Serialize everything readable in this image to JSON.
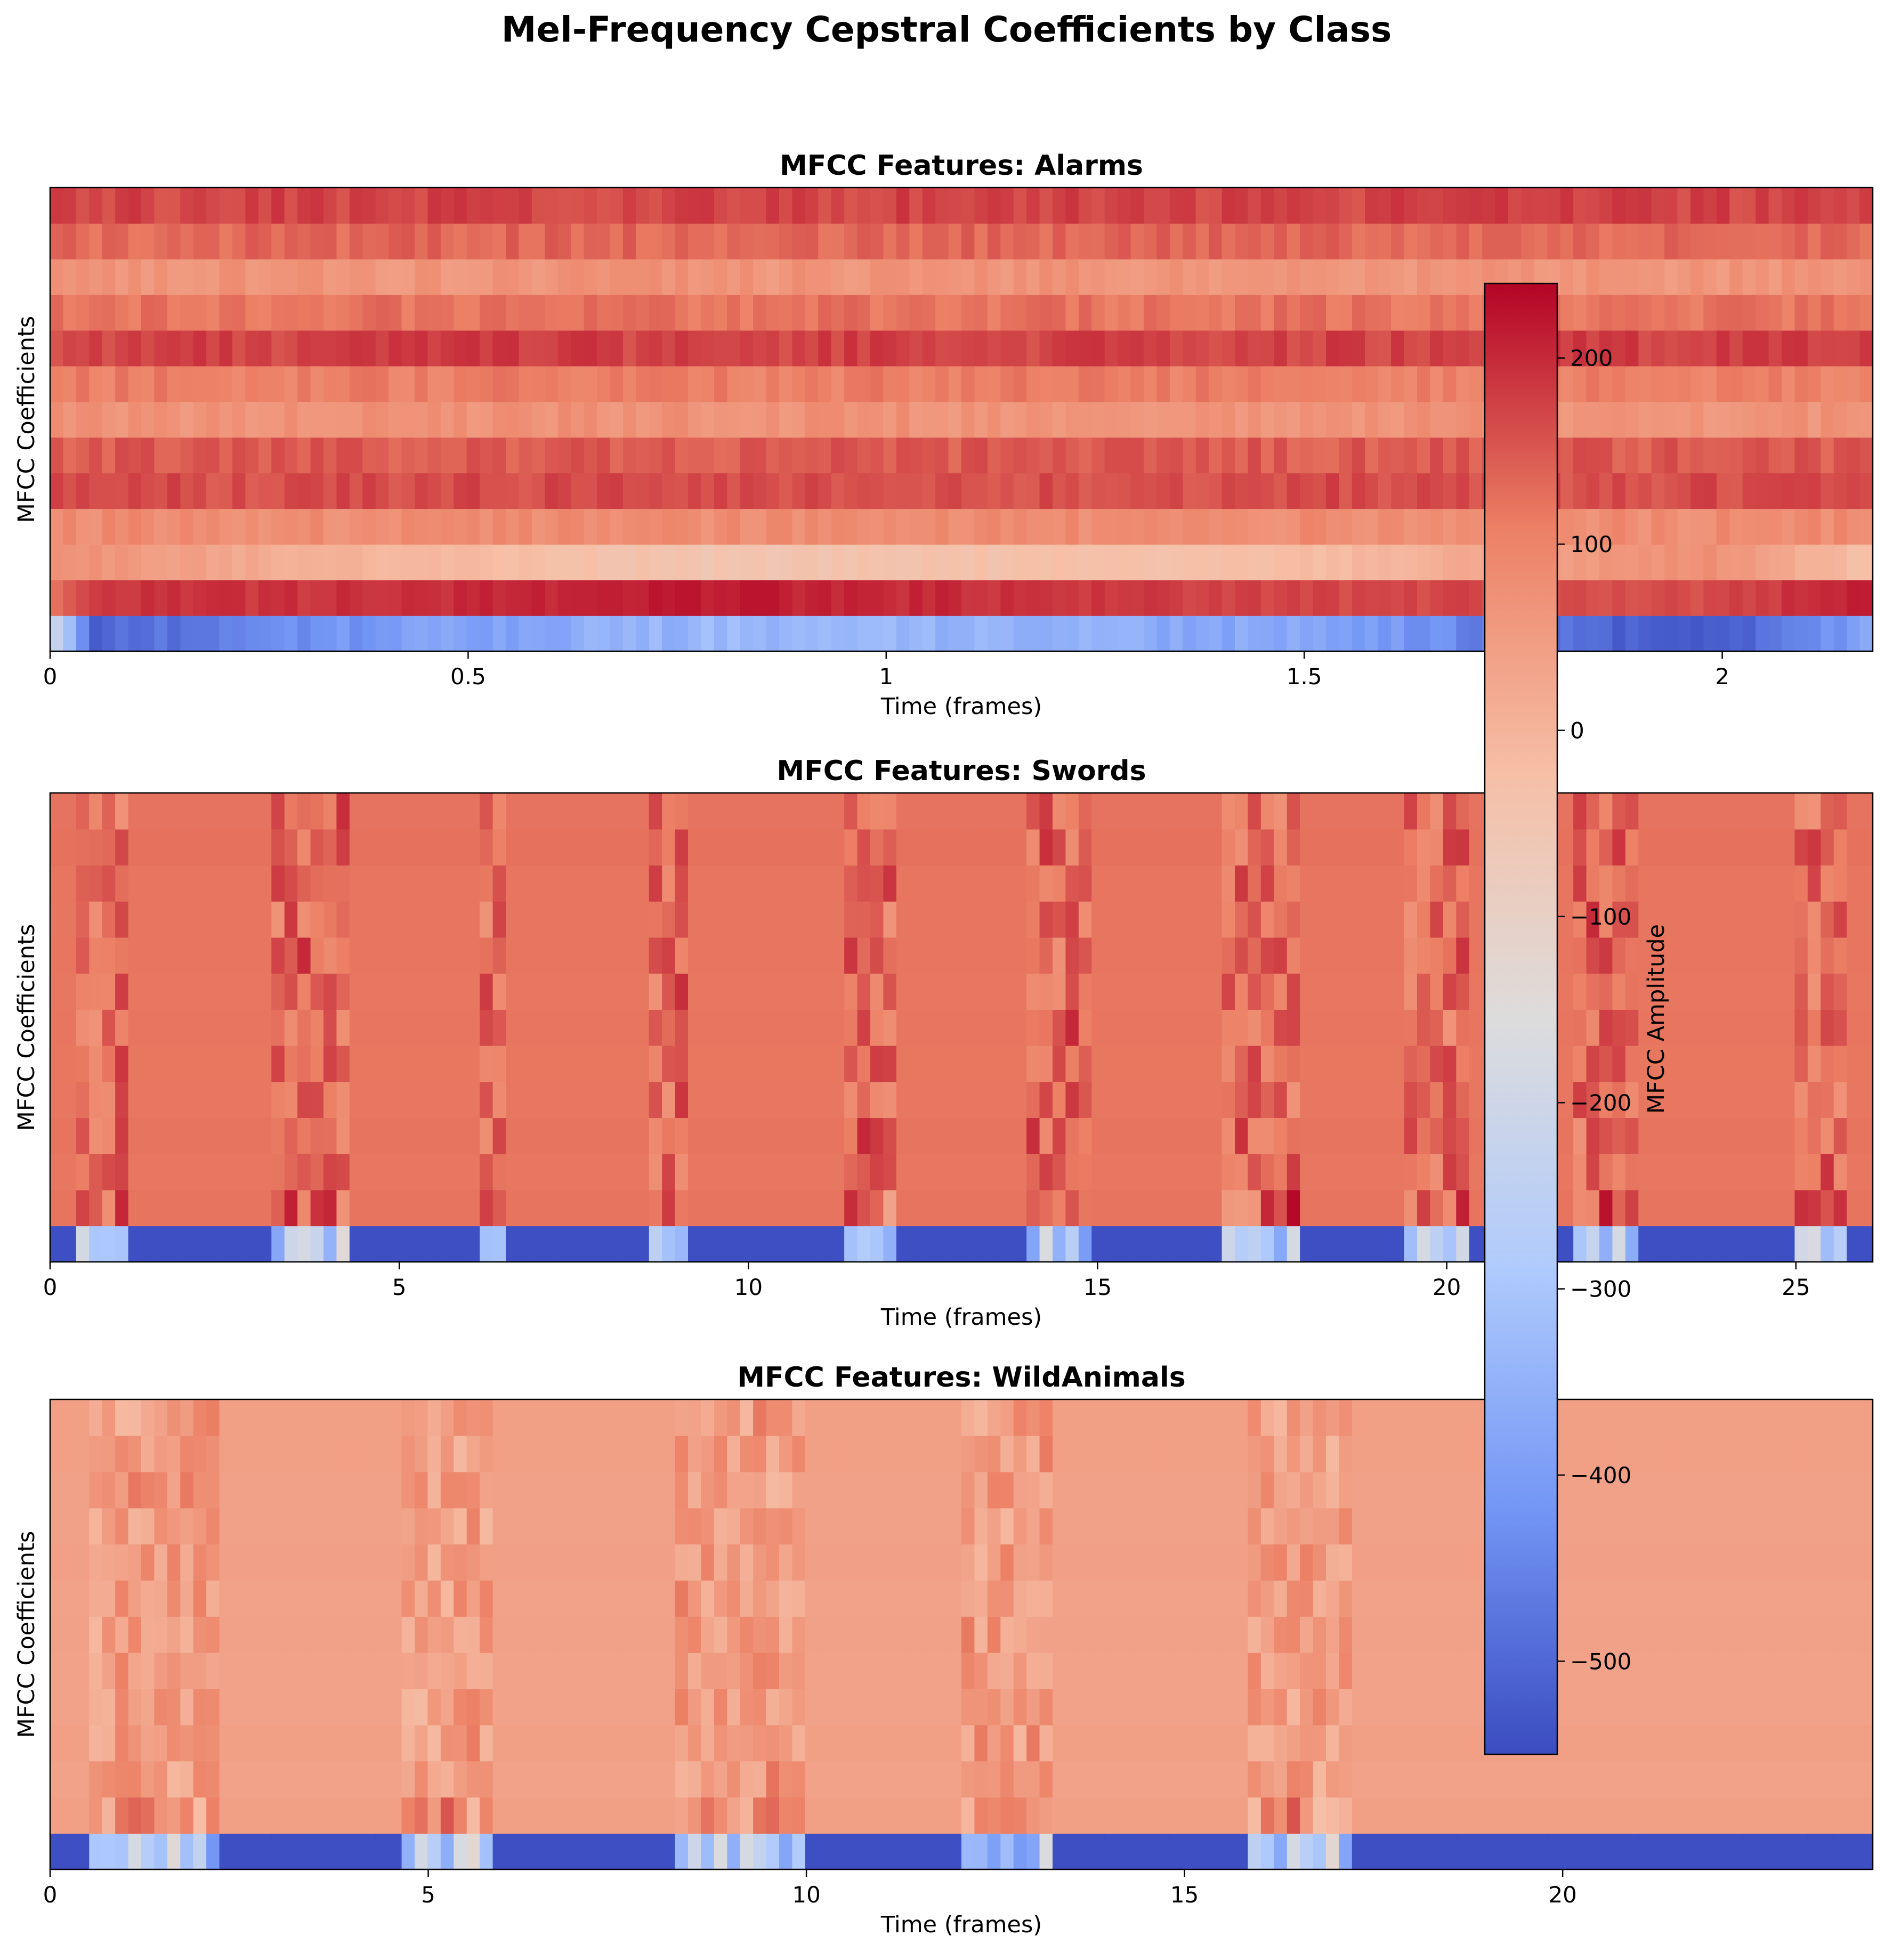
{
  "figure": {
    "title": "Mel-Frequency Cepstral Coefficients by Class"
  },
  "colorbar": {
    "label": "MFCC Amplitude",
    "vmin": -550,
    "vmax": 240,
    "ticks": [
      200,
      100,
      0,
      -100,
      -200,
      -300,
      -400,
      -500
    ],
    "tick_labels": [
      "200",
      "100",
      "0",
      "−100",
      "−200",
      "−300",
      "−400",
      "−500"
    ],
    "colormap": "coolwarm",
    "colormap_stops": [
      "#3b4cc0",
      "#7396f5",
      "#b0cbfc",
      "#dddcdc",
      "#f6bfa6",
      "#ec8065",
      "#b40426"
    ]
  },
  "chart_data": [
    {
      "type": "heatmap",
      "title": "MFCC Features: Alarms",
      "class": "Alarms",
      "xlabel": "Time (frames)",
      "ylabel": "MFCC Coefficients",
      "xlim": [
        0,
        2.18
      ],
      "xticks": [
        0,
        0.5,
        1,
        1.5,
        2
      ],
      "xtick_labels": [
        "0",
        "0.5",
        "1",
        "1.5",
        "2"
      ],
      "n_coefficients": 13,
      "time_steps": [
        0,
        0.05,
        0.33,
        0.8,
        1.52,
        1.97,
        2.18
      ],
      "coef0_values": [
        -150,
        -510,
        -420,
        -330,
        -380,
        -540,
        -380
      ],
      "coef1_values": [
        120,
        185,
        190,
        215,
        170,
        165,
        210
      ],
      "coef2_values": [
        60,
        70,
        0,
        -50,
        -20,
        80,
        -30
      ],
      "upper_coef_range": [
        40,
        200
      ]
    },
    {
      "type": "heatmap",
      "title": "MFCC Features: Swords",
      "class": "Swords",
      "xlabel": "Time (frames)",
      "ylabel": "MFCC Coefficients",
      "xlim": [
        0,
        26.1
      ],
      "xticks": [
        0,
        5,
        10,
        15,
        20,
        25
      ],
      "xtick_labels": [
        "0",
        "5",
        "10",
        "15",
        "20",
        "25"
      ],
      "n_coefficients": 13,
      "background_value": 120,
      "background_coef0_value": -545,
      "events": [
        [
          0.4,
          1.2
        ],
        [
          3.2,
          4.3
        ],
        [
          6.1,
          6.6
        ],
        [
          8.5,
          9.2
        ],
        [
          11.3,
          12.1
        ],
        [
          14,
          15
        ],
        [
          16.8,
          17.9
        ],
        [
          19.4,
          20.4
        ],
        [
          21.8,
          22.8
        ],
        [
          25.0,
          25.8
        ]
      ]
    },
    {
      "type": "heatmap",
      "title": "MFCC Features: WildAnimals",
      "class": "WildAnimals",
      "xlabel": "Time (frames)",
      "ylabel": "MFCC Coefficients",
      "xlim": [
        0,
        24.1
      ],
      "xticks": [
        0,
        5,
        10,
        15,
        20
      ],
      "xtick_labels": [
        "0",
        "5",
        "10",
        "15",
        "20"
      ],
      "n_coefficients": 13,
      "background_value": 40,
      "background_coef0_value": -545,
      "events": [
        [
          0.5,
          2.3
        ],
        [
          4.6,
          5.9
        ],
        [
          8.2,
          9.9
        ],
        [
          12.1,
          13.3
        ],
        [
          15.8,
          17.2
        ]
      ]
    }
  ]
}
